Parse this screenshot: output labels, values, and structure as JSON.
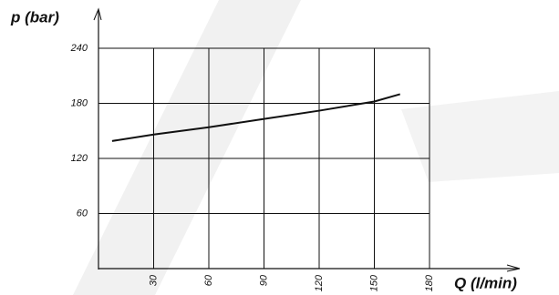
{
  "chart_data": {
    "type": "line",
    "y_label": "p (bar)",
    "x_label": "Q (l/min)",
    "x": [
      7.4,
      30,
      60,
      90,
      120,
      150,
      164
    ],
    "series": [
      {
        "color": "#111111",
        "values": [
          139,
          146,
          154,
          163,
          172,
          182,
          190
        ]
      }
    ],
    "xlim": [
      0,
      180
    ],
    "xticks": [
      30,
      60,
      90,
      120,
      150,
      180
    ],
    "ylim": [
      0,
      240
    ],
    "yticks": [
      60,
      120,
      180,
      240
    ],
    "grid": true
  }
}
